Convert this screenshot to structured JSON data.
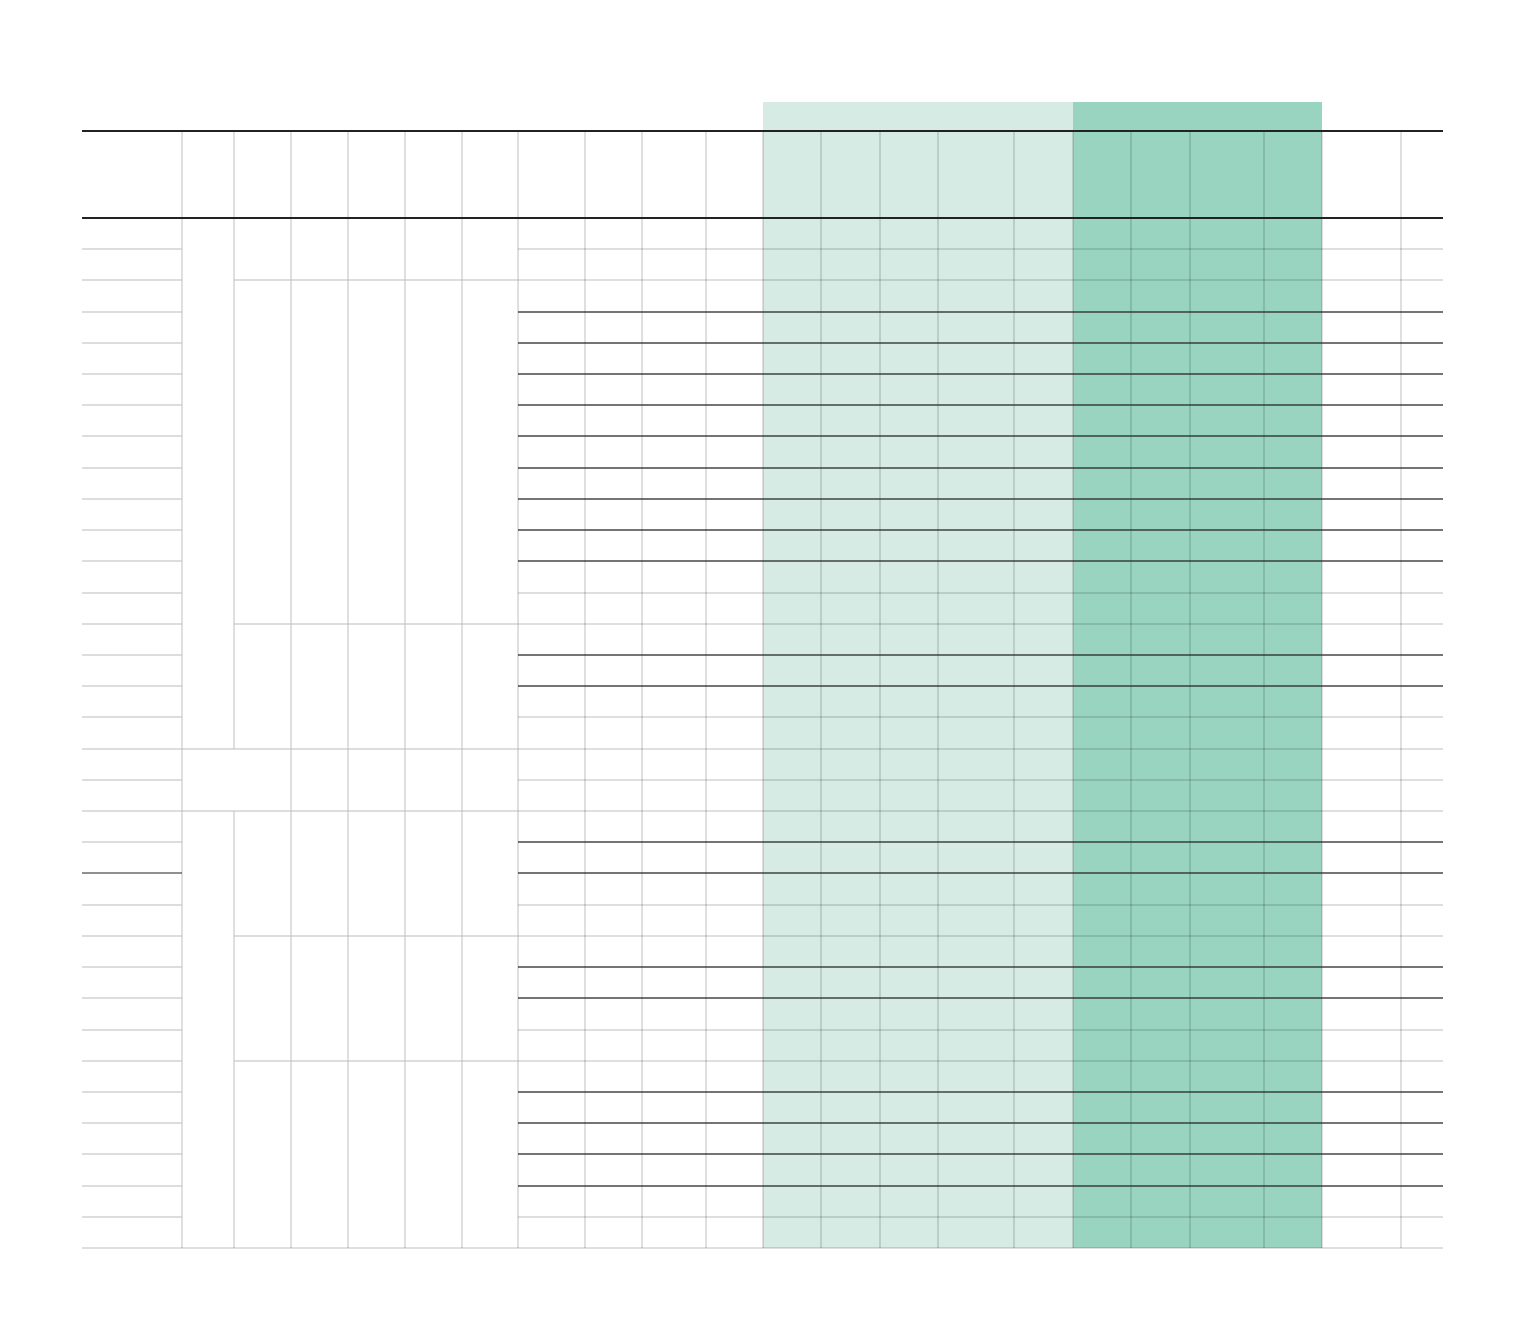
{
  "table": {
    "header_rows": 1,
    "body_rows": 33,
    "columns": 22,
    "highlight_groups": [
      {
        "name": "light-group",
        "color": "#d5ebe3"
      },
      {
        "name": "dark-group",
        "color": "#99d4c0"
      }
    ],
    "rule_color": "#222222",
    "grid_color": "#bbbbbb"
  }
}
